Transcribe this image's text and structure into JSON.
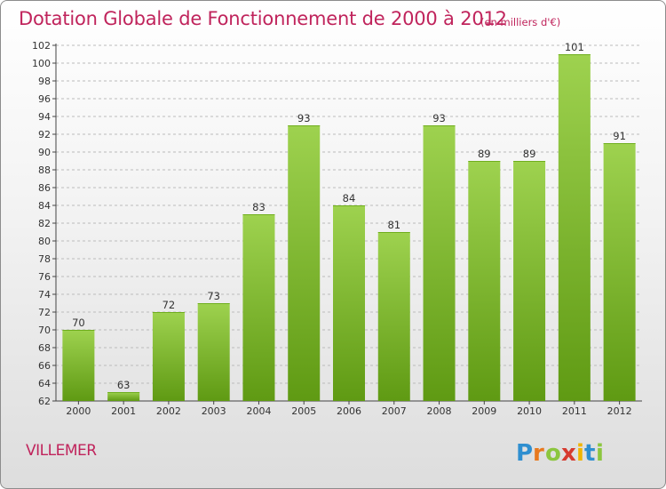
{
  "header": {
    "title": "Dotation Globale de Fonctionnement de 2000 à 2012",
    "unit": "(en milliers d'€)"
  },
  "footer": {
    "commune": "VILLEMER",
    "logo_text": "Proxiti"
  },
  "colors": {
    "title": "#c0245c",
    "bar_top": "#9ed24f",
    "bar_bottom": "#5f9a13",
    "grid": "#bbbbbb",
    "axis": "#444444"
  },
  "chart_data": {
    "type": "bar",
    "title": "Dotation Globale de Fonctionnement de 2000 à 2012",
    "subtitle": "(en milliers d'€)",
    "xlabel": "",
    "ylabel": "",
    "categories": [
      "2000",
      "2001",
      "2002",
      "2003",
      "2004",
      "2005",
      "2006",
      "2007",
      "2008",
      "2009",
      "2010",
      "2011",
      "2012"
    ],
    "values": [
      70,
      63,
      72,
      73,
      83,
      93,
      84,
      81,
      93,
      89,
      89,
      101,
      91
    ],
    "ylim": [
      62,
      102
    ],
    "ytick_step": 2,
    "grid": "horizontal dashed",
    "legend": "none"
  }
}
